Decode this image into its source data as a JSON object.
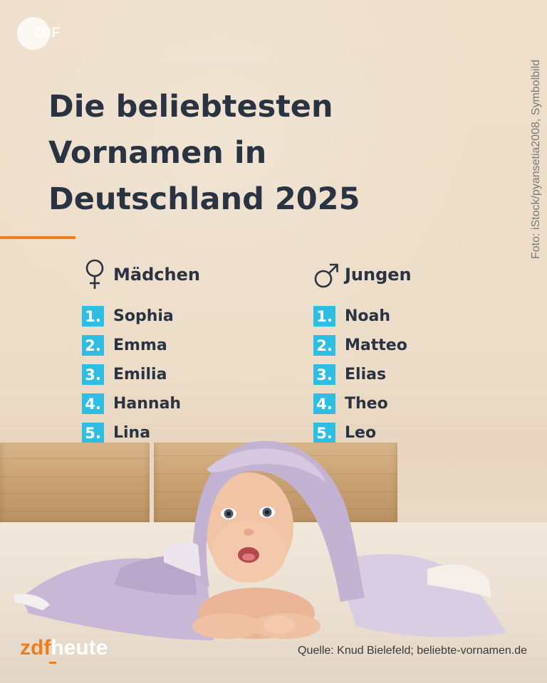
{
  "brand": {
    "logo_text": "ZDF",
    "wordmark_part1": "zdf",
    "wordmark_part2": "heute",
    "accent_color": "#f07d1b",
    "badge_color": "#2ebde3",
    "text_color": "#2a3342"
  },
  "title_lines": [
    "Die beliebtesten",
    "Vornamen in",
    "Deutschland 2025"
  ],
  "photo_credit": "Foto: iStock/pyansetia2008, Symbolbild",
  "girls": {
    "icon": "female-symbol-icon",
    "label": "Mädchen",
    "names": [
      {
        "rank": "1.",
        "name": "Sophia"
      },
      {
        "rank": "2.",
        "name": "Emma"
      },
      {
        "rank": "3.",
        "name": "Emilia"
      },
      {
        "rank": "4.",
        "name": "Hannah"
      },
      {
        "rank": "5.",
        "name": "Lina"
      }
    ]
  },
  "boys": {
    "icon": "male-symbol-icon",
    "label": "Jungen",
    "names": [
      {
        "rank": "1.",
        "name": "Noah"
      },
      {
        "rank": "2.",
        "name": "Matteo"
      },
      {
        "rank": "3.",
        "name": "Elias"
      },
      {
        "rank": "4.",
        "name": "Theo"
      },
      {
        "rank": "5.",
        "name": "Leo"
      }
    ]
  },
  "source": "Quelle: Knud Bielefeld; beliebte-vornamen.de"
}
